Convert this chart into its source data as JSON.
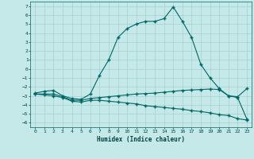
{
  "xlabel": "Humidex (Indice chaleur)",
  "background_color": "#c5e8e8",
  "grid_color": "#a8d0d0",
  "line_color": "#006666",
  "xlim": [
    -0.5,
    23.5
  ],
  "ylim": [
    -6.5,
    7.5
  ],
  "xticks": [
    0,
    1,
    2,
    3,
    4,
    5,
    6,
    7,
    8,
    9,
    10,
    11,
    12,
    13,
    14,
    15,
    16,
    17,
    18,
    19,
    20,
    21,
    22,
    23
  ],
  "yticks": [
    -6,
    -5,
    -4,
    -3,
    -2,
    -1,
    0,
    1,
    2,
    3,
    4,
    5,
    6,
    7
  ],
  "curve1_x": [
    0,
    1,
    2,
    3,
    4,
    5,
    6,
    7,
    8,
    9,
    10,
    11,
    12,
    13,
    14,
    15,
    16,
    17,
    18,
    19,
    20,
    21,
    22,
    23
  ],
  "curve1_y": [
    -2.7,
    -2.5,
    -2.4,
    -3.0,
    -3.3,
    -3.4,
    -2.8,
    -0.7,
    1.0,
    3.5,
    4.5,
    5.0,
    5.3,
    5.3,
    5.6,
    6.9,
    5.3,
    3.5,
    0.5,
    -1.0,
    -2.2,
    -3.0,
    -3.1,
    -2.2
  ],
  "curve2_x": [
    0,
    1,
    2,
    3,
    4,
    5,
    6,
    7,
    8,
    9,
    10,
    11,
    12,
    13,
    14,
    15,
    16,
    17,
    18,
    19,
    20,
    21,
    22,
    23
  ],
  "curve2_y": [
    -2.8,
    -2.8,
    -2.8,
    -3.1,
    -3.5,
    -3.5,
    -3.3,
    -3.2,
    -3.1,
    -3.0,
    -2.9,
    -2.8,
    -2.75,
    -2.7,
    -2.6,
    -2.5,
    -2.4,
    -2.35,
    -2.3,
    -2.25,
    -2.3,
    -3.0,
    -3.2,
    -5.6
  ],
  "curve3_x": [
    0,
    1,
    2,
    3,
    4,
    5,
    6,
    7,
    8,
    9,
    10,
    11,
    12,
    13,
    14,
    15,
    16,
    17,
    18,
    19,
    20,
    21,
    22,
    23
  ],
  "curve3_y": [
    -2.8,
    -2.9,
    -3.0,
    -3.2,
    -3.6,
    -3.7,
    -3.5,
    -3.5,
    -3.6,
    -3.7,
    -3.8,
    -3.9,
    -4.1,
    -4.2,
    -4.3,
    -4.4,
    -4.5,
    -4.65,
    -4.75,
    -4.9,
    -5.1,
    -5.2,
    -5.55,
    -5.7
  ]
}
